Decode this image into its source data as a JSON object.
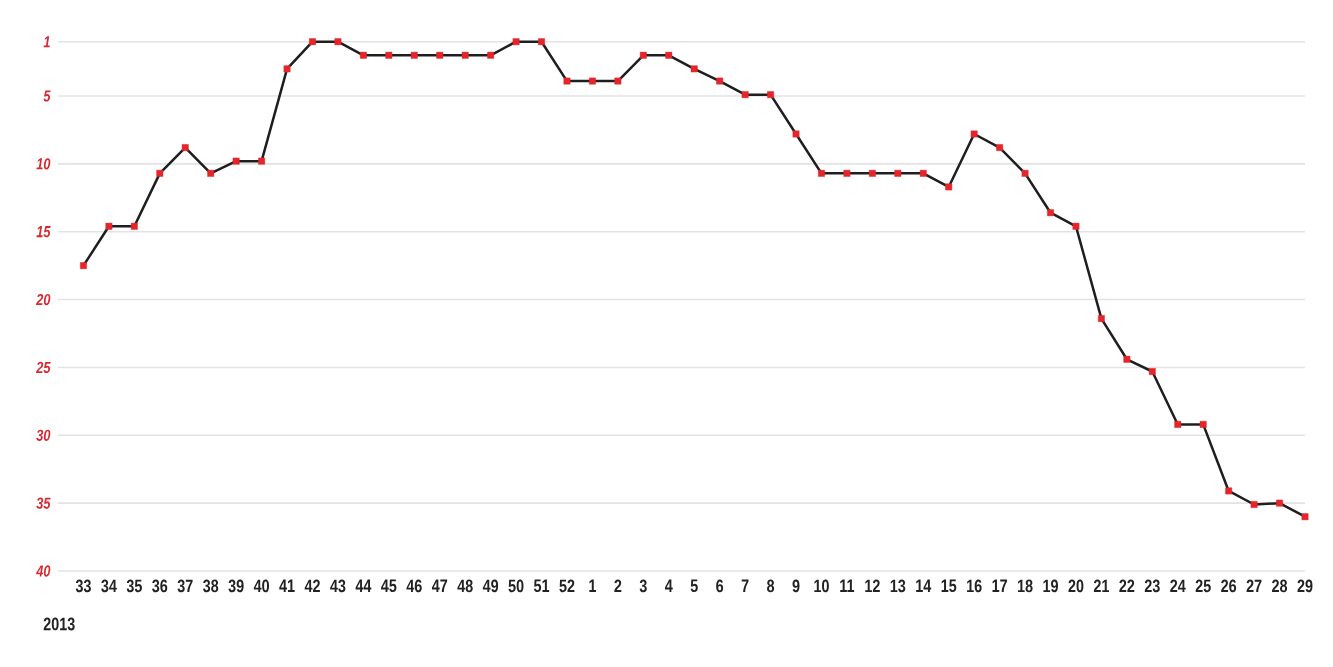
{
  "chart_data": {
    "type": "line",
    "categories": [
      "33",
      "34",
      "35",
      "36",
      "37",
      "38",
      "39",
      "40",
      "41",
      "42",
      "43",
      "44",
      "45",
      "46",
      "47",
      "48",
      "49",
      "50",
      "51",
      "52",
      "1",
      "2",
      "3",
      "4",
      "5",
      "6",
      "7",
      "8",
      "9",
      "10",
      "11",
      "12",
      "13",
      "14",
      "15",
      "16",
      "17",
      "18",
      "19",
      "20",
      "21",
      "22",
      "23",
      "24",
      "25",
      "26",
      "27",
      "28",
      "29"
    ],
    "values": [
      17.5,
      14.6,
      14.6,
      10.7,
      8.8,
      10.7,
      9.8,
      9.8,
      3,
      1,
      1,
      2,
      2,
      2,
      2,
      2,
      2,
      1,
      1,
      3.9,
      3.9,
      3.9,
      2,
      2,
      3,
      3.9,
      4.9,
      4.9,
      7.8,
      10.7,
      10.7,
      10.7,
      10.7,
      10.7,
      11.7,
      7.8,
      8.8,
      10.7,
      13.6,
      14.6,
      21.4,
      24.4,
      25.3,
      29.2,
      29.2,
      34.1,
      35.1,
      35.0,
      36.0
    ],
    "color": "#1e1e1e",
    "colors": [
      "#e3262b",
      "#e3262b",
      "#e3262b",
      "#e3262b",
      "#e3262b",
      "#e3262b",
      "#e3262b",
      "#e3262b",
      "#e3262b",
      "#e3262b",
      "#e3262b",
      "#e3262b",
      "#e3262b",
      "#e3262b",
      "#e3262b",
      "#e3262b",
      "#e3262b",
      "#e3262b",
      "#e3262b",
      "#e3262b",
      "#e3262b",
      "#e3262b",
      "#e3262b",
      "#e3262b",
      "#e3262b",
      "#e3262b",
      "#e3262b",
      "#e3262b",
      "#e3262b",
      "#e3262b",
      "#e3262b",
      "#e3262b",
      "#e3262b",
      "#e3262b",
      "#e3262b",
      "#e3262b",
      "#e3262b",
      "#e3262b",
      "#e3262b",
      "#e3262b",
      "#e3262b",
      "#e3262b",
      "#e3262b",
      "#e3262b",
      "#e3262b",
      "#e3262b",
      "#e3262b",
      "#e3262b",
      "#e3262b"
    ],
    "ylim": [
      40,
      1
    ],
    "yticks": [
      1,
      5,
      10,
      15,
      20,
      25,
      30,
      35,
      40
    ],
    "grid": "y",
    "marker": "square",
    "line_style": "solid",
    "annotations": [
      "2013"
    ]
  }
}
